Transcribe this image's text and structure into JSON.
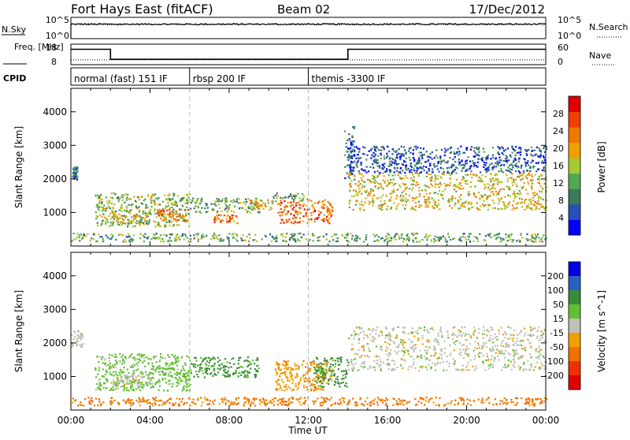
{
  "header": {
    "station": "Fort Hays East (fitACF)",
    "beam": "Beam 02",
    "date": "17/Dec/2012"
  },
  "chart_data": [
    {
      "type": "line",
      "name": "noise-panel",
      "left_label": "N.Sky",
      "right_label": "N.Search",
      "left_ticks": [
        "10^5",
        "10^0"
      ],
      "right_ticks": [
        "10^5",
        "10^0"
      ],
      "description_values": {
        "n_sky_level_log10": 3.4,
        "n_search_level_log10": 3.3
      }
    },
    {
      "type": "line",
      "name": "frequency-panel",
      "left_label": "Freq. [MHz]",
      "right_label": "Nave",
      "left_ticks": [
        "18",
        "8"
      ],
      "right_ticks": [
        "60",
        "0"
      ],
      "freq_mhz": [
        {
          "x": "00:00",
          "y": 15.5
        },
        {
          "x": "02:00",
          "y": 15.5
        },
        {
          "x": "02:00",
          "y": 10.6
        },
        {
          "x": "14:00",
          "y": 10.6
        },
        {
          "x": "14:00",
          "y": 15.5
        },
        {
          "x": "24:00",
          "y": 15.5
        }
      ],
      "nave": [
        {
          "x": "00:00",
          "y": 14
        },
        {
          "x": "24:00",
          "y": 14
        }
      ]
    },
    {
      "type": "table",
      "name": "cpid-panel",
      "label": "CPID",
      "segments": [
        {
          "start": "00:00",
          "end": "06:00",
          "label": "normal (fast) 151 IF"
        },
        {
          "start": "06:00",
          "end": "12:00",
          "label": "rbsp 200 IF"
        },
        {
          "start": "12:00",
          "end": "24:00",
          "label": "themis -3300 IF"
        }
      ]
    },
    {
      "type": "heatmap",
      "name": "power-panel",
      "ylabel": "Slant Range [km]",
      "y_ticks": [
        1000,
        2000,
        3000,
        4000
      ],
      "ylim": [
        0,
        4700
      ],
      "colorbar_label": "Power [dB]",
      "colorbar_ticks": [
        "4",
        "8",
        "12",
        "16",
        "20",
        "24",
        "28"
      ],
      "colorbar_colors": [
        "#0000ff",
        "#2850b8",
        "#3a7a5a",
        "#50a850",
        "#a8c830",
        "#f0a000",
        "#f07800",
        "#f04000",
        "#e00000"
      ],
      "scatter_regions": [
        {
          "t0": 0.05,
          "t1": 0.3,
          "r0": 2000,
          "r1": 2400,
          "val": 10
        },
        {
          "t0": 1.2,
          "t1": 6.0,
          "r0": 600,
          "r1": 1600,
          "val": 16
        },
        {
          "t0": 4.3,
          "t1": 5.9,
          "r0": 750,
          "r1": 1150,
          "val": 26
        },
        {
          "t0": 2.0,
          "t1": 3.8,
          "r0": 700,
          "r1": 1000,
          "val": 20
        },
        {
          "t0": 6.0,
          "t1": 9.5,
          "r0": 1000,
          "r1": 1450,
          "val": 14
        },
        {
          "t0": 9.0,
          "t1": 10.2,
          "r0": 1100,
          "r1": 1400,
          "val": 20
        },
        {
          "t0": 7.2,
          "t1": 8.4,
          "r0": 700,
          "r1": 950,
          "val": 24
        },
        {
          "t0": 10.2,
          "t1": 12.0,
          "r0": 1350,
          "r1": 1600,
          "val": 14
        },
        {
          "t0": 10.4,
          "t1": 13.2,
          "r0": 700,
          "r1": 1400,
          "val": 26
        },
        {
          "t0": 14.0,
          "t1": 24.0,
          "r0": 1100,
          "r1": 2200,
          "val": 20
        },
        {
          "t0": 14.0,
          "t1": 24.0,
          "r0": 2200,
          "r1": 3000,
          "val": 8
        },
        {
          "t0": 13.8,
          "t1": 14.3,
          "r0": 2000,
          "r1": 3600,
          "val": 8
        },
        {
          "t0": 0.0,
          "t1": 24.0,
          "r0": 150,
          "r1": 400,
          "val": 14
        }
      ]
    },
    {
      "type": "heatmap",
      "name": "velocity-panel",
      "xlabel": "Time UT",
      "ylabel": "Slant Range [km]",
      "x_ticks": [
        "00:00",
        "04:00",
        "08:00",
        "12:00",
        "16:00",
        "20:00",
        "00:00"
      ],
      "y_ticks": [
        1000,
        2000,
        3000,
        4000
      ],
      "ylim": [
        0,
        4700
      ],
      "colorbar_label": "Velocity [m s^-1]",
      "colorbar_ticks": [
        "200",
        "100",
        "50",
        "15",
        "-15",
        "-50",
        "-100",
        "-200"
      ],
      "colorbar_colors": [
        "#0000e0",
        "#2860c0",
        "#3a8a3a",
        "#60c030",
        "#c0c0b8",
        "#f0a000",
        "#f07000",
        "#f03000",
        "#e00000"
      ],
      "scatter_regions": [
        {
          "t0": 0.0,
          "t1": 0.6,
          "r0": 1900,
          "r1": 2400,
          "val": 0
        },
        {
          "t0": 1.2,
          "t1": 6.0,
          "r0": 600,
          "r1": 1700,
          "val": 30
        },
        {
          "t0": 2.0,
          "t1": 4.0,
          "r0": 700,
          "r1": 1100,
          "val": 0
        },
        {
          "t0": 6.0,
          "t1": 9.5,
          "r0": 1000,
          "r1": 1600,
          "val": 60
        },
        {
          "t0": 10.3,
          "t1": 13.2,
          "r0": 600,
          "r1": 1500,
          "val": -40
        },
        {
          "t0": 12.2,
          "t1": 14.0,
          "r0": 700,
          "r1": 1600,
          "val": 60
        },
        {
          "t0": 14.0,
          "t1": 24.0,
          "r0": 1200,
          "r1": 2500,
          "val": 0
        },
        {
          "t0": 0.0,
          "t1": 24.0,
          "r0": 150,
          "r1": 400,
          "val": -60
        }
      ]
    }
  ]
}
